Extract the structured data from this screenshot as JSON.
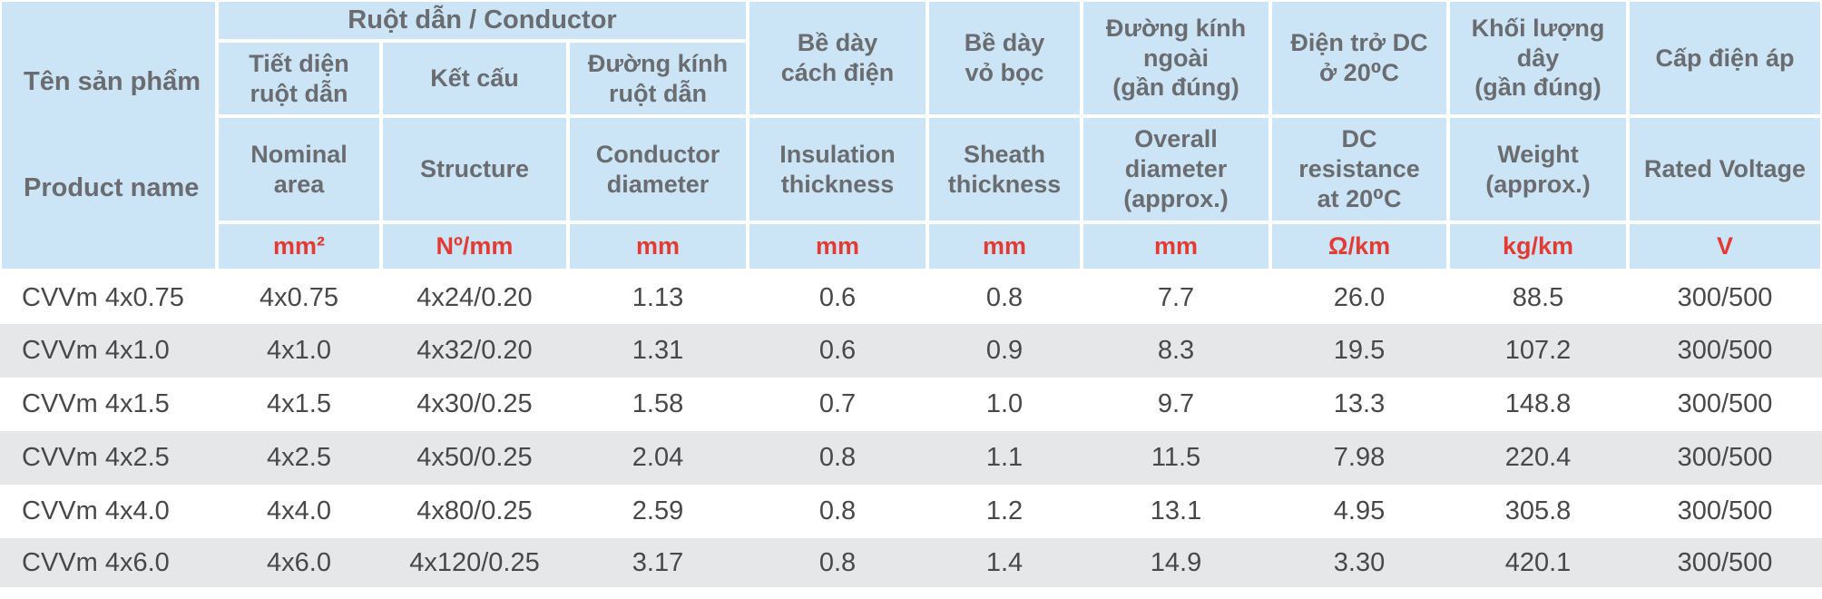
{
  "table": {
    "header": {
      "product_name": {
        "vi": "Tên sản phẩm",
        "en": "Product name"
      },
      "conductor_group": "Ruột dẫn / Conductor",
      "columns": [
        {
          "vi": "Tiết diện\nruột dẫn",
          "en": "Nominal\narea",
          "unit": "mm²"
        },
        {
          "vi": "Kết cấu",
          "en": "Structure",
          "unit": "Nº/mm"
        },
        {
          "vi": "Đường kính\nruột dẫn",
          "en": "Conductor\ndiameter",
          "unit": "mm"
        },
        {
          "vi": "Bề dày\ncách điện",
          "en": "Insulation\nthickness",
          "unit": "mm"
        },
        {
          "vi": "Bề dày\nvỏ bọc",
          "en": "Sheath\nthickness",
          "unit": "mm"
        },
        {
          "vi": "Đường kính\nngoài\n(gần đúng)",
          "en": "Overall\ndiameter\n(approx.)",
          "unit": "mm"
        },
        {
          "vi": "Điện trở DC\nở 20⁰C",
          "en": "DC\nresistance\nat 20⁰C",
          "unit": "Ω/km"
        },
        {
          "vi": "Khối lượng\ndây\n(gần đúng)",
          "en": "Weight\n(approx.)",
          "unit": "kg/km"
        },
        {
          "vi": "Cấp điện áp",
          "en": "Rated Voltage",
          "unit": "V"
        }
      ]
    },
    "rows": [
      [
        "CVVm 4x0.75",
        "4x0.75",
        "4x24/0.20",
        "1.13",
        "0.6",
        "0.8",
        "7.7",
        "26.0",
        "88.5",
        "300/500"
      ],
      [
        "CVVm 4x1.0",
        "4x1.0",
        "4x32/0.20",
        "1.31",
        "0.6",
        "0.9",
        "8.3",
        "19.5",
        "107.2",
        "300/500"
      ],
      [
        "CVVm 4x1.5",
        "4x1.5",
        "4x30/0.25",
        "1.58",
        "0.7",
        "1.0",
        "9.7",
        "13.3",
        "148.8",
        "300/500"
      ],
      [
        "CVVm 4x2.5",
        "4x2.5",
        "4x50/0.25",
        "2.04",
        "0.8",
        "1.1",
        "11.5",
        "7.98",
        "220.4",
        "300/500"
      ],
      [
        "CVVm 4x4.0",
        "4x4.0",
        "4x80/0.25",
        "2.59",
        "0.8",
        "1.2",
        "13.1",
        "4.95",
        "305.8",
        "300/500"
      ],
      [
        "CVVm 4x6.0",
        "4x6.0",
        "4x120/0.25",
        "3.17",
        "0.8",
        "1.4",
        "14.9",
        "3.30",
        "420.1",
        "300/500"
      ]
    ],
    "colors": {
      "header_background": "#cce5f6",
      "header_text": "#6b6c6f",
      "unit_text": "#e33b32",
      "data_text": "#47484a",
      "stripe": "#e6e7e9",
      "grid_line": "#ffffff"
    }
  }
}
